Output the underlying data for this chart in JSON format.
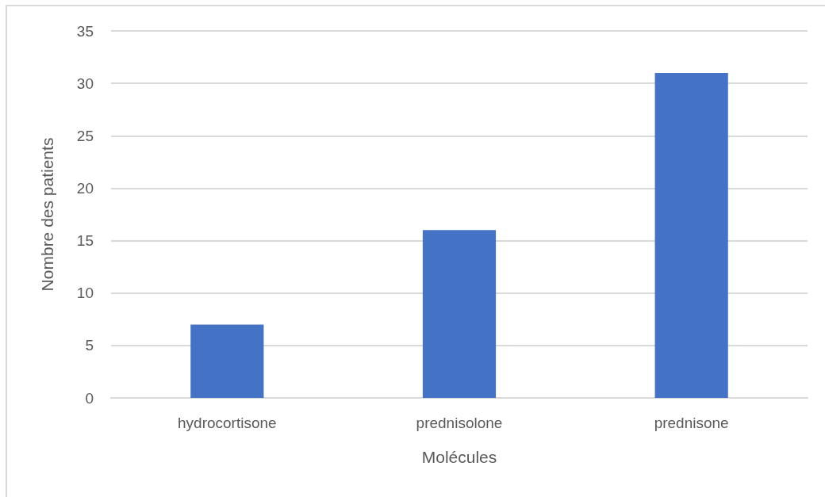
{
  "chart_data": {
    "type": "bar",
    "xlabel": "Molécules",
    "ylabel": "Nombre des patients",
    "categories": [
      "hydrocortisone",
      "prednisolone",
      "prednisone"
    ],
    "values": [
      7,
      16,
      31
    ],
    "color": "#4472c4",
    "ylim": [
      0,
      35
    ],
    "yticks": [
      0,
      5,
      10,
      15,
      20,
      25,
      30,
      35
    ],
    "grid": "y"
  }
}
